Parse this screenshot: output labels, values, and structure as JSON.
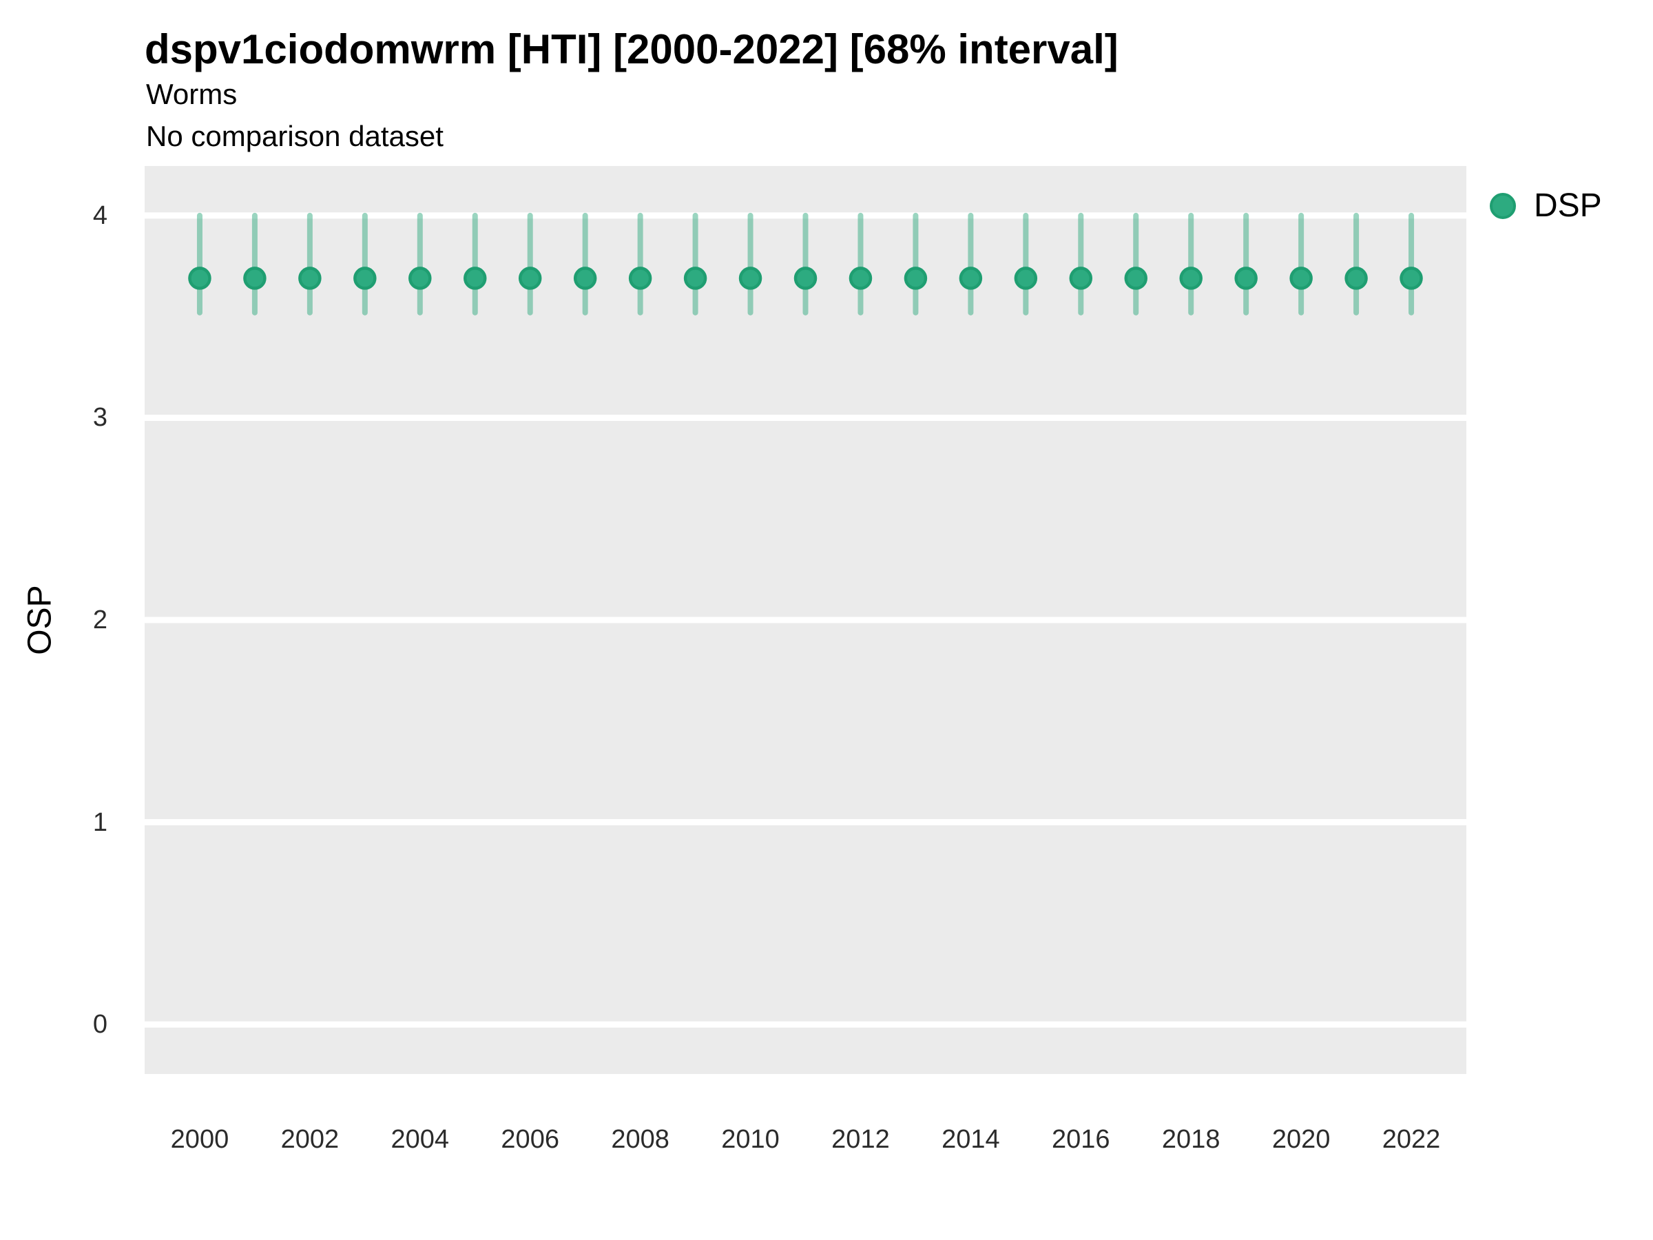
{
  "chart_data": {
    "type": "scatter",
    "title": "dspv1ciodomwrm [HTI] [2000-2022] [68% interval]",
    "subtitle": "Worms",
    "note": "No comparison dataset",
    "xlabel": "",
    "ylabel": "OSP",
    "legend_position": "right-top",
    "grid": "horizontal major white gridlines only, grey panel background",
    "panel_bg": "#EBEBEB",
    "gridline_color": "#FFFFFF",
    "xlim": [
      1999,
      2023
    ],
    "ylim": [
      -0.245,
      4.245
    ],
    "x_ticks": [
      2000,
      2002,
      2004,
      2006,
      2008,
      2010,
      2012,
      2014,
      2016,
      2018,
      2020,
      2022
    ],
    "y_ticks": [
      0,
      1,
      2,
      3,
      4
    ],
    "series": [
      {
        "name": "DSP",
        "marker_color": "#2DAB80",
        "marker_edge_color": "#1F9E71",
        "errorbar_color": "rgba(43,168,124,0.48)",
        "x": [
          2000,
          2001,
          2002,
          2003,
          2004,
          2005,
          2006,
          2007,
          2008,
          2009,
          2010,
          2011,
          2012,
          2013,
          2014,
          2015,
          2016,
          2017,
          2018,
          2019,
          2020,
          2021,
          2022
        ],
        "y": [
          3.69,
          3.69,
          3.69,
          3.69,
          3.69,
          3.69,
          3.69,
          3.69,
          3.69,
          3.69,
          3.69,
          3.69,
          3.69,
          3.69,
          3.69,
          3.69,
          3.69,
          3.69,
          3.69,
          3.69,
          3.69,
          3.69,
          3.69
        ],
        "ymin": [
          3.52,
          3.52,
          3.52,
          3.52,
          3.52,
          3.52,
          3.52,
          3.52,
          3.52,
          3.52,
          3.52,
          3.52,
          3.52,
          3.52,
          3.52,
          3.52,
          3.52,
          3.52,
          3.52,
          3.52,
          3.52,
          3.52,
          3.52
        ],
        "ymax": [
          4.0,
          4.0,
          4.0,
          4.0,
          4.0,
          4.0,
          4.0,
          4.0,
          4.0,
          4.0,
          4.0,
          4.0,
          4.0,
          4.0,
          4.0,
          4.0,
          4.0,
          4.0,
          4.0,
          4.0,
          4.0,
          4.0,
          4.0
        ]
      }
    ]
  }
}
